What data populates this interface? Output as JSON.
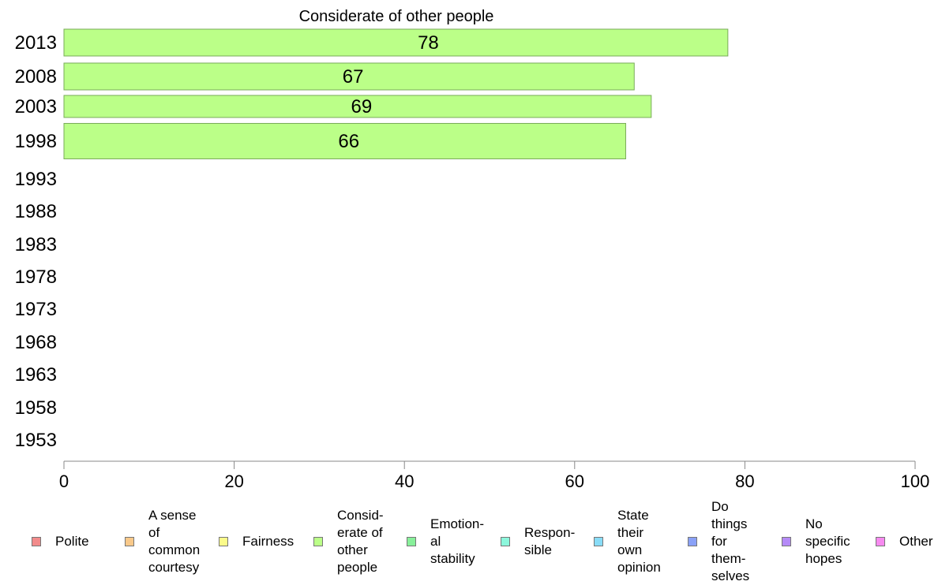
{
  "chart_data": {
    "type": "bar",
    "orientation": "horizontal",
    "title": "Considerate of other people",
    "xlabel": "",
    "ylabel": "",
    "xlim": [
      0,
      100
    ],
    "x_ticks": [
      "0",
      "20",
      "40",
      "60",
      "80",
      "100"
    ],
    "categories": [
      "2013",
      "2008",
      "2003",
      "1998",
      "1993",
      "1988",
      "1983",
      "1978",
      "1973",
      "1968",
      "1963",
      "1958",
      "1953"
    ],
    "series": [
      {
        "values": [
          78,
          67,
          69,
          66,
          null,
          null,
          null,
          null,
          null,
          null,
          null,
          null,
          null
        ]
      }
    ],
    "data_labels": [
      "78",
      "67",
      "69",
      "66",
      "",
      "",
      "",
      "",
      "",
      "",
      "",
      "",
      ""
    ],
    "bar_color": "#bbff88",
    "bar_border_color": "#7aab5a",
    "grid": false,
    "legend_position": "bottom",
    "legend": [
      {
        "label": "Polite",
        "color": "#f28b8b"
      },
      {
        "label": "A sense\nof\ncommon\ncourtesy",
        "color": "#f9c98a"
      },
      {
        "label": "Fairness",
        "color": "#fbfb8a"
      },
      {
        "label": "Consid-\nerate of\nother\npeople",
        "color": "#bbff88"
      },
      {
        "label": "Emotion-\nal\nstability",
        "color": "#88f09a"
      },
      {
        "label": "Respon-\nsible",
        "color": "#8cf7dc"
      },
      {
        "label": "State\ntheir\nown\nopinion",
        "color": "#88dcf7"
      },
      {
        "label": "Do\nthings\nfor\nthem-\nselves",
        "color": "#8aa1f7"
      },
      {
        "label": "No\nspecific\nhopes",
        "color": "#b58af7"
      },
      {
        "label": "Other",
        "color": "#f78af0"
      }
    ]
  }
}
